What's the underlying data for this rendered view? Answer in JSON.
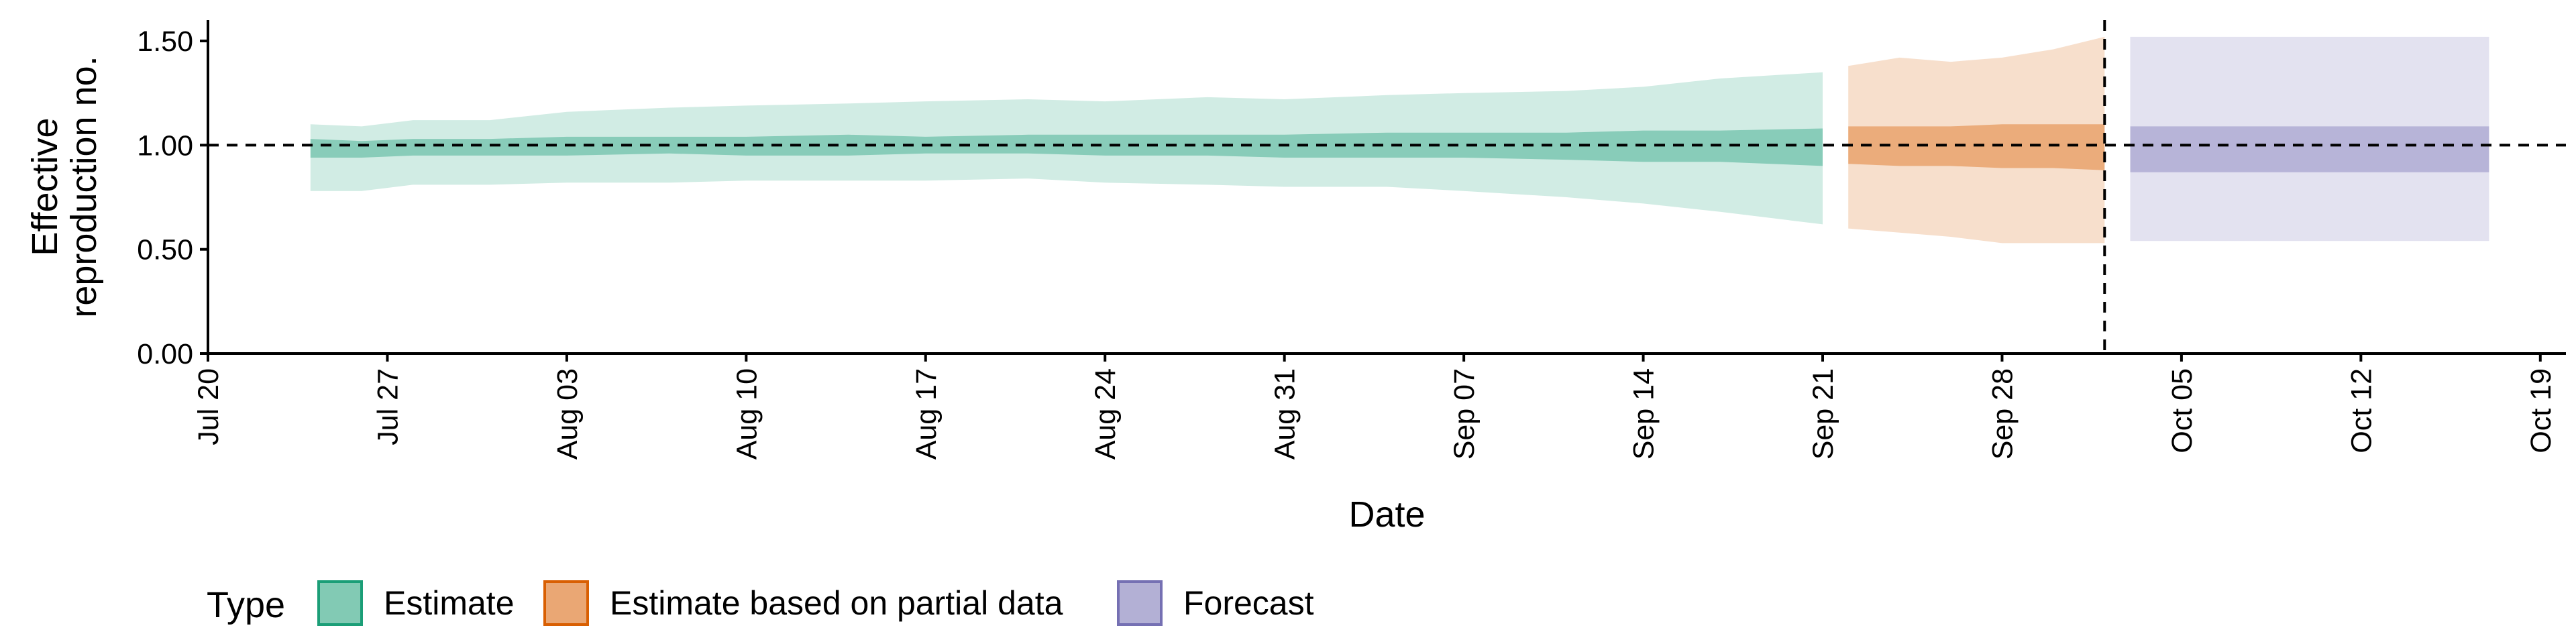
{
  "chart_data": {
    "type": "area",
    "title": "",
    "xlabel": "Date",
    "ylabel_lines": [
      "Effective",
      "reproduction no."
    ],
    "ylim": [
      0,
      1.6
    ],
    "yticks": [
      0.0,
      0.5,
      1.0,
      1.5
    ],
    "ytick_labels": [
      "0.00",
      "0.50",
      "1.00",
      "1.50"
    ],
    "xlim": [
      "2020-07-20",
      "2020-10-20"
    ],
    "xticks": [
      "2020-07-20",
      "2020-07-27",
      "2020-08-03",
      "2020-08-10",
      "2020-08-17",
      "2020-08-24",
      "2020-08-31",
      "2020-09-07",
      "2020-09-14",
      "2020-09-21",
      "2020-09-28",
      "2020-10-05",
      "2020-10-12",
      "2020-10-19"
    ],
    "xtick_labels": [
      "Jul 20",
      "Jul 27",
      "Aug 03",
      "Aug 10",
      "Aug 17",
      "Aug 24",
      "Aug 31",
      "Sep 07",
      "Sep 14",
      "Sep 21",
      "Sep 28",
      "Oct 05",
      "Oct 12",
      "Oct 19"
    ],
    "reference_hline": 1.0,
    "reference_vline": "2020-10-02",
    "legend": {
      "title": "Type",
      "position": "bottom",
      "entries": [
        {
          "label": "Estimate",
          "color": "#1b9e77"
        },
        {
          "label": "Estimate based on partial data",
          "color": "#d95f02"
        },
        {
          "label": "Forecast",
          "color": "#7570b3"
        }
      ]
    },
    "series": [
      {
        "name": "Estimate",
        "color": "#1b9e77",
        "x": [
          "2020-07-24",
          "2020-07-26",
          "2020-07-28",
          "2020-07-31",
          "2020-08-03",
          "2020-08-07",
          "2020-08-10",
          "2020-08-14",
          "2020-08-17",
          "2020-08-21",
          "2020-08-24",
          "2020-08-28",
          "2020-08-31",
          "2020-09-04",
          "2020-09-07",
          "2020-09-11",
          "2020-09-14",
          "2020-09-17",
          "2020-09-21"
        ],
        "outer_upper": [
          1.1,
          1.09,
          1.12,
          1.12,
          1.16,
          1.18,
          1.19,
          1.2,
          1.21,
          1.22,
          1.21,
          1.23,
          1.22,
          1.24,
          1.25,
          1.26,
          1.28,
          1.32,
          1.35
        ],
        "inner_upper": [
          1.03,
          1.02,
          1.03,
          1.03,
          1.04,
          1.04,
          1.04,
          1.05,
          1.04,
          1.05,
          1.05,
          1.05,
          1.05,
          1.06,
          1.06,
          1.06,
          1.07,
          1.07,
          1.08
        ],
        "inner_lower": [
          0.94,
          0.94,
          0.95,
          0.95,
          0.95,
          0.96,
          0.95,
          0.95,
          0.96,
          0.96,
          0.95,
          0.95,
          0.94,
          0.94,
          0.94,
          0.93,
          0.92,
          0.92,
          0.9
        ],
        "outer_lower": [
          0.78,
          0.78,
          0.81,
          0.81,
          0.82,
          0.82,
          0.83,
          0.83,
          0.83,
          0.84,
          0.82,
          0.81,
          0.8,
          0.8,
          0.78,
          0.75,
          0.72,
          0.68,
          0.62
        ]
      },
      {
        "name": "Estimate based on partial data",
        "color": "#d95f02",
        "x": [
          "2020-09-22",
          "2020-09-24",
          "2020-09-26",
          "2020-09-28",
          "2020-09-30",
          "2020-10-02"
        ],
        "outer_upper": [
          1.38,
          1.42,
          1.4,
          1.42,
          1.46,
          1.52
        ],
        "inner_upper": [
          1.09,
          1.09,
          1.09,
          1.1,
          1.1,
          1.1
        ],
        "inner_lower": [
          0.91,
          0.9,
          0.9,
          0.89,
          0.89,
          0.88
        ],
        "outer_lower": [
          0.6,
          0.58,
          0.56,
          0.53,
          0.53,
          0.53
        ]
      },
      {
        "name": "Forecast",
        "color": "#7570b3",
        "x": [
          "2020-10-03",
          "2020-10-17"
        ],
        "outer_upper": [
          1.52,
          1.52
        ],
        "inner_upper": [
          1.09,
          1.09
        ],
        "inner_lower": [
          0.87,
          0.87
        ],
        "outer_lower": [
          0.54,
          0.54
        ]
      }
    ]
  }
}
